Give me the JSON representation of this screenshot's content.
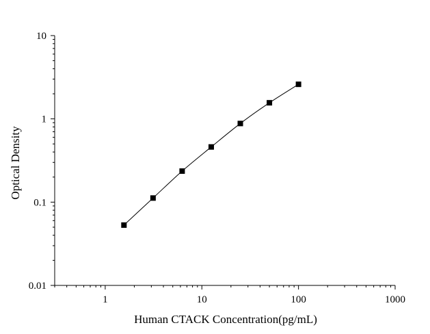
{
  "chart_data": {
    "type": "scatter",
    "xlabel": "Human CTACK Concentration(pg/mL)",
    "ylabel": "Optical Density",
    "xscale": "log",
    "yscale": "log",
    "xlim": [
      0.3,
      1000
    ],
    "ylim": [
      0.01,
      10
    ],
    "x_tick_labels": [
      "1",
      "10",
      "100",
      "1000"
    ],
    "y_tick_labels": [
      "0.01",
      "0.1",
      "1",
      "10"
    ],
    "grid": false,
    "marker": "square",
    "fit_line": true,
    "series": [
      {
        "x": [
          1.5625,
          3.125,
          6.25,
          12.5,
          25,
          50,
          100
        ],
        "y": [
          0.053,
          0.112,
          0.236,
          0.46,
          0.88,
          1.56,
          2.6
        ]
      }
    ]
  }
}
